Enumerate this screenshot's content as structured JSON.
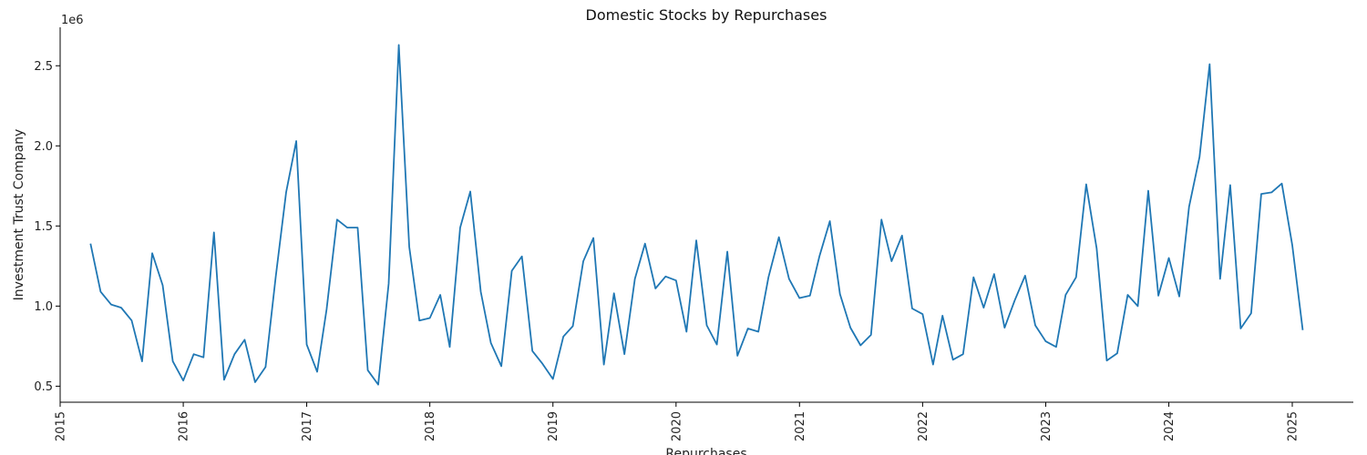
{
  "chart_data": {
    "type": "line",
    "title": "Domestic Stocks by Repurchases",
    "xlabel": "Repurchases",
    "ylabel": "Investment Trust Company",
    "y_multiplier_label": "1e6",
    "xlim": [
      "2015-01-01",
      "2025-07-01"
    ],
    "ylim": [
      0.4,
      2.74
    ],
    "x_ticks": [
      "2015-01-01",
      "2016-01-01",
      "2017-01-01",
      "2018-01-01",
      "2019-01-01",
      "2020-01-01",
      "2021-01-01",
      "2022-01-01",
      "2023-01-01",
      "2024-01-01",
      "2025-01-01"
    ],
    "x_tick_labels": [
      "2015",
      "2016",
      "2017",
      "2018",
      "2019",
      "2020",
      "2021",
      "2022",
      "2023",
      "2024",
      "2025"
    ],
    "y_ticks": [
      0.5,
      1.0,
      1.5,
      2.0,
      2.5
    ],
    "y_tick_labels": [
      "0.5",
      "1.0",
      "1.5",
      "2.0",
      "2.5"
    ],
    "grid": false,
    "line_color": "#1f77b4",
    "series": [
      {
        "x": [
          "2015-04",
          "2015-05",
          "2015-06",
          "2015-07",
          "2015-08",
          "2015-09",
          "2015-10",
          "2015-11",
          "2015-12",
          "2016-01",
          "2016-02",
          "2016-03",
          "2016-04",
          "2016-05",
          "2016-06",
          "2016-07",
          "2016-08",
          "2016-09",
          "2016-10",
          "2016-11",
          "2016-12",
          "2017-01",
          "2017-02",
          "2017-03",
          "2017-04",
          "2017-05",
          "2017-06",
          "2017-07",
          "2017-08",
          "2017-09",
          "2017-10",
          "2017-11",
          "2017-12",
          "2018-01",
          "2018-02",
          "2018-03",
          "2018-04",
          "2018-05",
          "2018-06",
          "2018-07",
          "2018-08",
          "2018-09",
          "2018-10",
          "2018-11",
          "2018-12",
          "2019-01",
          "2019-02",
          "2019-03",
          "2019-04",
          "2019-05",
          "2019-06",
          "2019-07",
          "2019-08",
          "2019-09",
          "2019-10",
          "2019-11",
          "2019-12",
          "2020-01",
          "2020-02",
          "2020-03",
          "2020-04",
          "2020-05",
          "2020-06",
          "2020-07",
          "2020-08",
          "2020-09",
          "2020-10",
          "2020-11",
          "2020-12",
          "2021-01",
          "2021-02",
          "2021-03",
          "2021-04",
          "2021-05",
          "2021-06",
          "2021-07",
          "2021-08",
          "2021-09",
          "2021-10",
          "2021-11",
          "2021-12",
          "2022-01",
          "2022-02",
          "2022-03",
          "2022-04",
          "2022-05",
          "2022-06",
          "2022-07",
          "2022-08",
          "2022-09",
          "2022-10",
          "2022-11",
          "2022-12",
          "2023-01",
          "2023-02",
          "2023-03",
          "2023-04",
          "2023-05",
          "2023-06",
          "2023-07",
          "2023-08",
          "2023-09",
          "2023-10",
          "2023-11",
          "2023-12",
          "2024-01",
          "2024-02",
          "2024-03",
          "2024-04",
          "2024-05",
          "2024-06",
          "2024-07",
          "2024-08",
          "2024-09",
          "2024-10",
          "2024-11",
          "2024-12",
          "2025-01",
          "2025-02"
        ],
        "y": [
          1.39,
          1.09,
          1.01,
          0.99,
          0.91,
          0.655,
          1.33,
          1.13,
          0.655,
          0.535,
          0.7,
          0.68,
          1.46,
          0.54,
          0.7,
          0.79,
          0.525,
          0.62,
          1.18,
          1.71,
          2.03,
          0.76,
          0.59,
          0.98,
          1.54,
          1.49,
          1.49,
          0.6,
          0.51,
          1.14,
          2.63,
          1.37,
          0.91,
          0.925,
          1.07,
          0.745,
          1.49,
          1.715,
          1.09,
          0.77,
          0.625,
          1.22,
          1.31,
          0.72,
          0.64,
          0.545,
          0.81,
          0.875,
          1.28,
          1.425,
          0.635,
          1.08,
          0.7,
          1.17,
          1.39,
          1.11,
          1.185,
          1.16,
          0.84,
          1.41,
          0.88,
          0.76,
          1.34,
          0.69,
          0.86,
          0.84,
          1.18,
          1.43,
          1.17,
          1.05,
          1.065,
          1.31,
          1.53,
          1.075,
          0.865,
          0.755,
          0.82,
          1.54,
          1.28,
          1.44,
          0.985,
          0.95,
          0.635,
          0.94,
          0.665,
          0.7,
          1.18,
          0.99,
          1.2,
          0.865,
          1.035,
          1.19,
          0.88,
          0.78,
          0.745,
          1.07,
          1.18,
          1.76,
          1.36,
          0.66,
          0.705,
          1.07,
          1.0,
          1.72,
          1.065,
          1.3,
          1.06,
          1.62,
          1.93,
          2.51,
          1.17,
          1.755,
          0.86,
          0.955,
          1.7,
          1.71,
          1.765,
          1.38,
          0.85
        ]
      }
    ]
  }
}
